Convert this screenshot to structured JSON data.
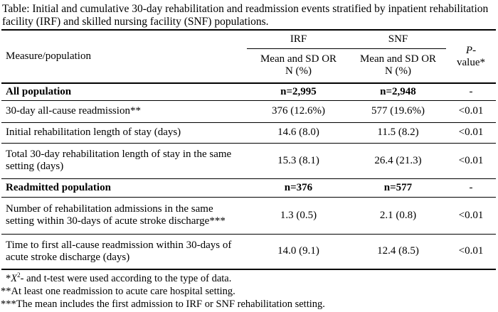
{
  "title": "Table: Initial and cumulative 30-day rehabilitation and readmission events stratified by inpatient rehabilitation facility (IRF) and skilled nursing facility (SNF) populations.",
  "header": {
    "measure": "Measure/population",
    "irf_group": "IRF",
    "snf_group": "SNF",
    "sub_line1": "Mean and SD OR",
    "sub_line2": "N (%)",
    "pvalue_italic": "P",
    "pvalue_rest": "-",
    "pvalue_line2": "value*"
  },
  "rows": [
    {
      "measure": "All population",
      "irf": "n=2,995",
      "snf": "n=2,948",
      "p": "-"
    },
    {
      "measure": "30-day all-cause readmission**",
      "irf": "376 (12.6%)",
      "snf": "577 (19.6%)",
      "p": "<0.01"
    },
    {
      "measure": "Initial rehabilitation length of stay (days)",
      "irf": "14.6 (8.0)",
      "snf": "11.5 (8.2)",
      "p": "<0.01"
    },
    {
      "measure": "Total 30-day rehabilitation length of stay in the same setting (days)",
      "irf": "15.3 (8.1)",
      "snf": "26.4 (21.3)",
      "p": "<0.01"
    },
    {
      "measure": "Readmitted population",
      "irf": "n=376",
      "snf": "n=577",
      "p": "-"
    },
    {
      "measure": "Number of rehabilitation admissions in the same setting within 30-days of acute stroke discharge***",
      "irf": "1.3 (0.5)",
      "snf": "2.1 (0.8)",
      "p": "<0.01"
    },
    {
      "measure": "Time to first all-cause readmission within 30-days of acute stroke discharge (days)",
      "irf": "14.0 (9.1)",
      "snf": "12.4 (8.5)",
      "p": "<0.01"
    }
  ],
  "footnotes": {
    "fn1_prefix": "*",
    "fn1_italic": "X",
    "fn1_sup": "2",
    "fn1_rest": "- and t-test were used according to the type of data.",
    "fn2": "**At least one readmission to acute care hospital setting.",
    "fn3": "***The mean includes the first admission to IRF or SNF rehabilitation setting."
  }
}
